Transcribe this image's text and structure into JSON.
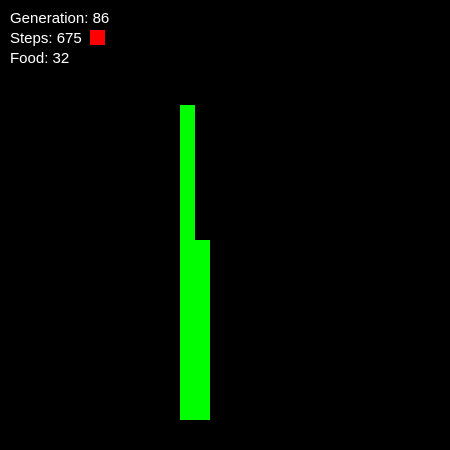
{
  "hud": {
    "generation_label": "Generation:",
    "generation": 86,
    "steps_label": "Steps:",
    "steps": 675,
    "food_label": "Food:",
    "food": 32
  },
  "colors": {
    "background": "#000000",
    "snake": "#00ff00",
    "food": "#ff0000",
    "text": "#ffffff"
  }
}
